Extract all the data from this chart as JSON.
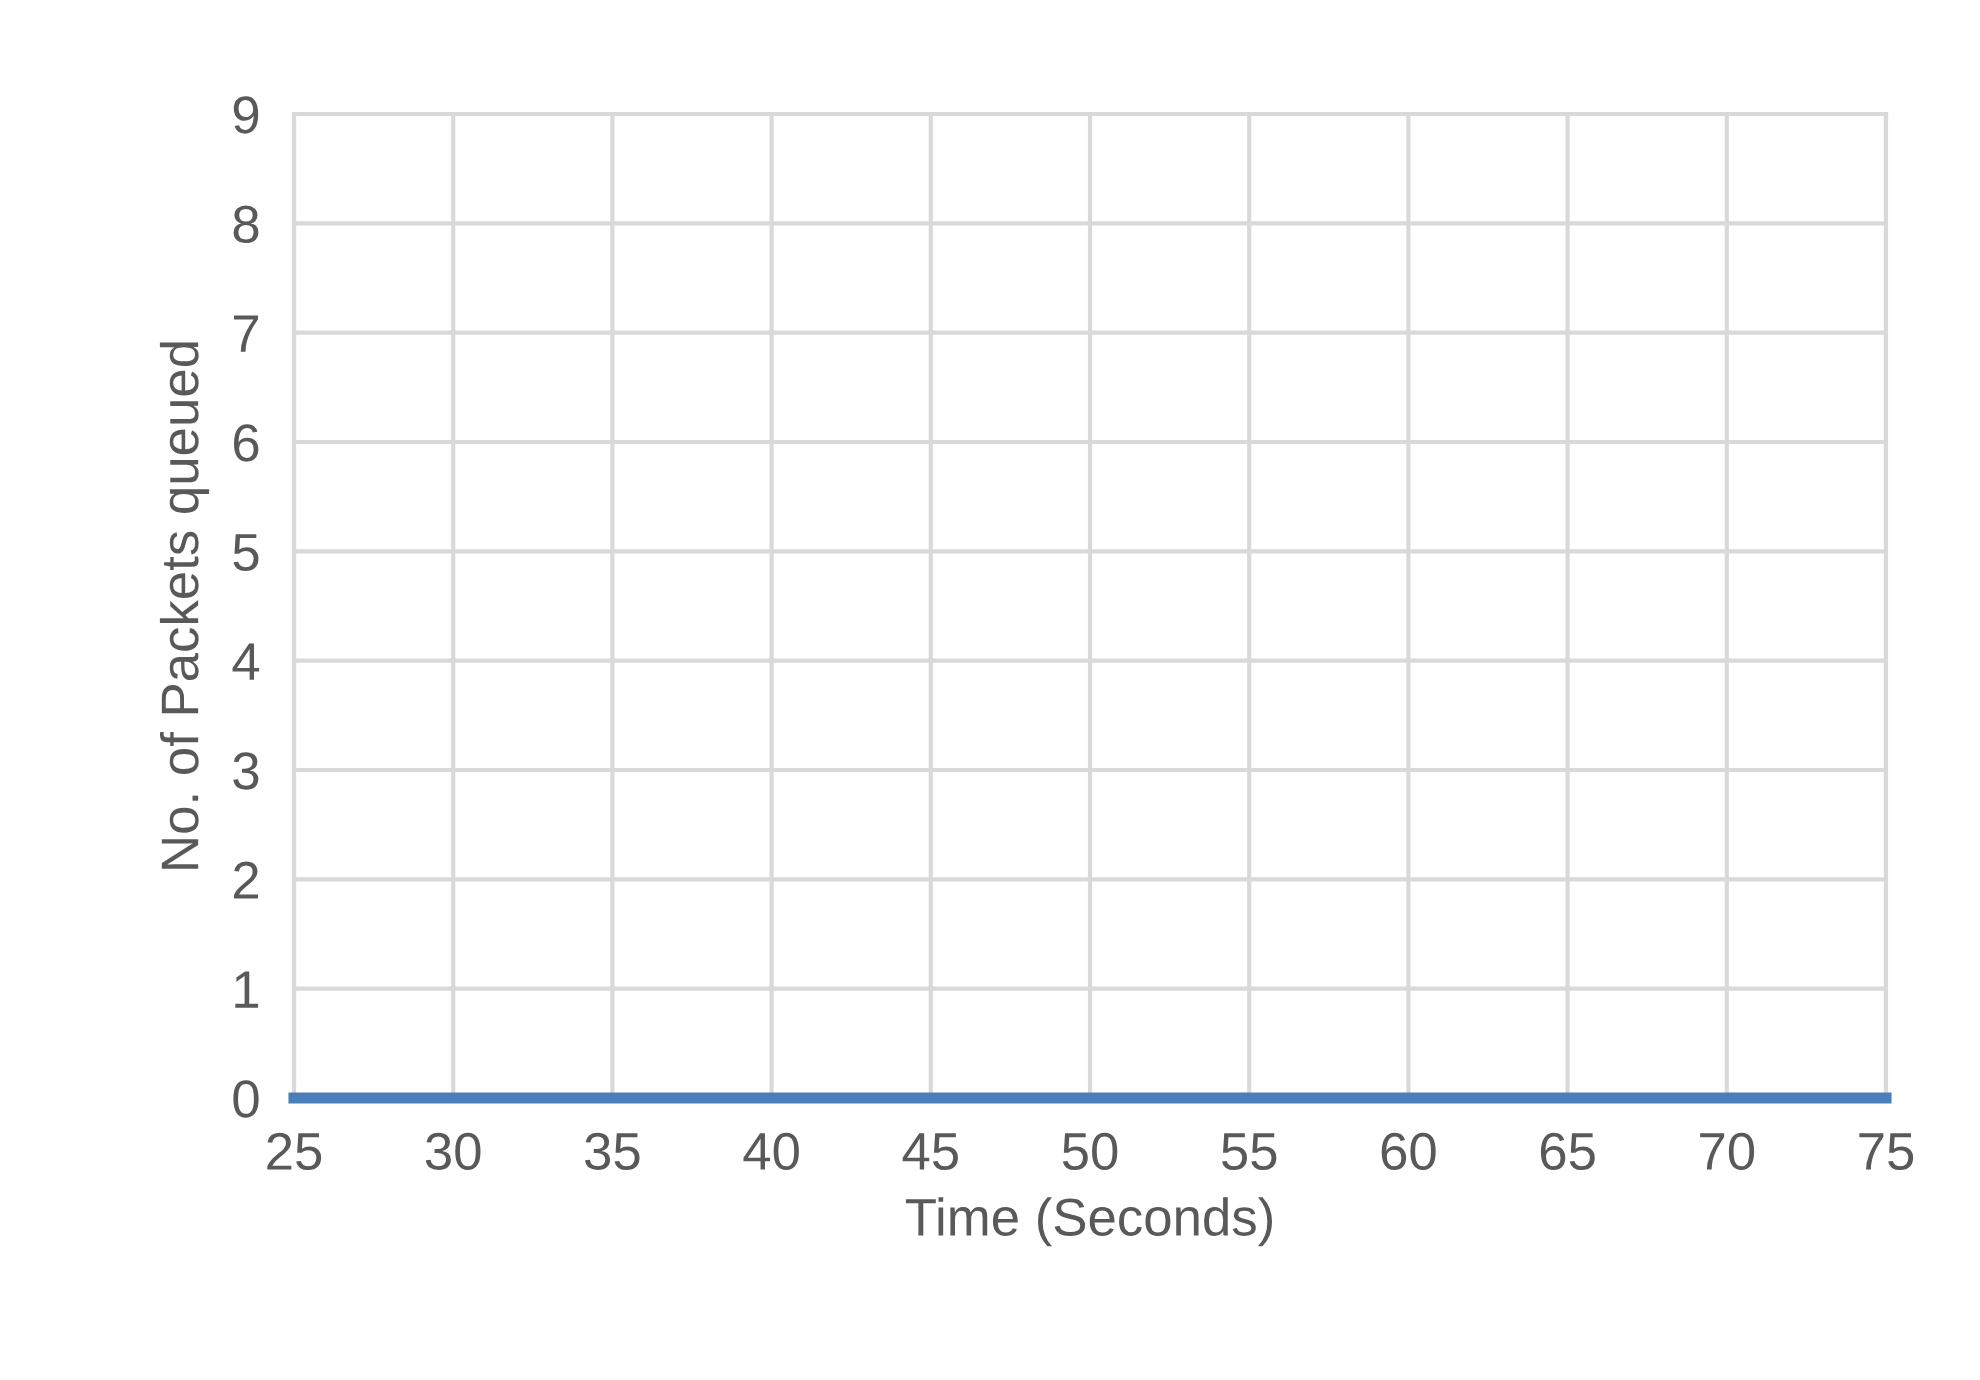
{
  "chart_data": {
    "type": "line",
    "xlabel": "Time (Seconds)",
    "ylabel": "No. of Packets queued",
    "series": [
      {
        "color": "#4a7ebb",
        "x": [
          25,
          75
        ],
        "values": [
          0,
          0
        ]
      }
    ],
    "xlim": [
      25,
      75
    ],
    "xticks": [
      25,
      30,
      35,
      40,
      45,
      50,
      55,
      60,
      65,
      70,
      75
    ],
    "ylim": [
      0,
      9
    ],
    "yticks": [
      0,
      1,
      2,
      3,
      4,
      5,
      6,
      7,
      8,
      9
    ],
    "grid": true,
    "marker": "none",
    "line_style": "solid"
  }
}
